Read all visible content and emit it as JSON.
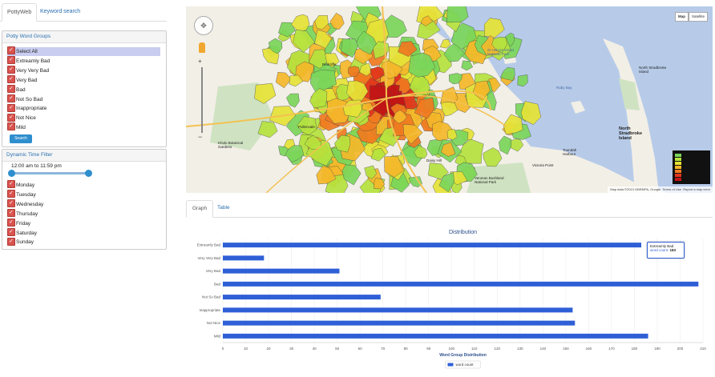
{
  "tabs": {
    "potty_web": "PottyWeb",
    "keyword_search": "Keyword search"
  },
  "word_groups": {
    "title": "Potty Word Groups",
    "items": [
      "Select All",
      "Extreamly Bad",
      "Very Very Bad",
      "Very Bad",
      "Bad",
      "Not So Bad",
      "Inappropriate",
      "Not Nice",
      "Mild"
    ],
    "search_label": "Search"
  },
  "time_filter": {
    "title": "Dynamic Time Filter",
    "range_label": "12:00 am to 11:59 pm",
    "range_fraction": [
      0.0,
      1.0
    ],
    "days": [
      "Monday",
      "Tuesday",
      "Wednesday",
      "Thursday",
      "Friday",
      "Saturday",
      "Sunday"
    ]
  },
  "map": {
    "type_map": "Map",
    "type_satellite": "Satellite",
    "labels": [
      "St Helena Island National Park",
      "Raby Bay",
      "North Stradbroke Island",
      "North Stradbroke Island",
      "Toondah Harbour",
      "Victoria Point",
      "Venman Bushland National Park",
      "Daisy Hill",
      "Kholo Botanical Gardens",
      "Pullenvale",
      "Redcliffe"
    ],
    "attribution": "Map data ©2013 GBRMPA, Google",
    "terms": "Terms of Use",
    "report": "Report a map error",
    "legend_colors": [
      "#7bd65a",
      "#b6e33e",
      "#e6e337",
      "#f5b82a",
      "#f07a20",
      "#e2361c",
      "#c21515"
    ],
    "colors": {
      "water": "#b7cbe9",
      "land": "#f2efe7"
    }
  },
  "graph_tabs": {
    "graph": "Graph",
    "table": "Table"
  },
  "chart_data": {
    "type": "bar",
    "orientation": "horizontal",
    "title": "Distribution",
    "xlabel": "Word Group Distribution",
    "ylabel": "",
    "categories": [
      "Extreamly Bad",
      "Very Very Bad",
      "Very Bad",
      "Bad",
      "Not So Bad",
      "Inappropriate",
      "Not Nice",
      "Mild"
    ],
    "series": [
      {
        "name": "word count",
        "values": [
          183,
          18,
          51,
          208,
          69,
          153,
          154,
          186
        ],
        "color": "#2e5fd6"
      }
    ],
    "xlim": [
      0,
      210
    ],
    "xticks": [
      0,
      10,
      20,
      30,
      40,
      50,
      60,
      70,
      80,
      90,
      100,
      110,
      120,
      130,
      140,
      150,
      160,
      170,
      180,
      190,
      200,
      210
    ],
    "legend": "bottom-center",
    "tooltip": {
      "category": "Extreamly Bad",
      "series_label": "word count:",
      "value": "183"
    }
  }
}
